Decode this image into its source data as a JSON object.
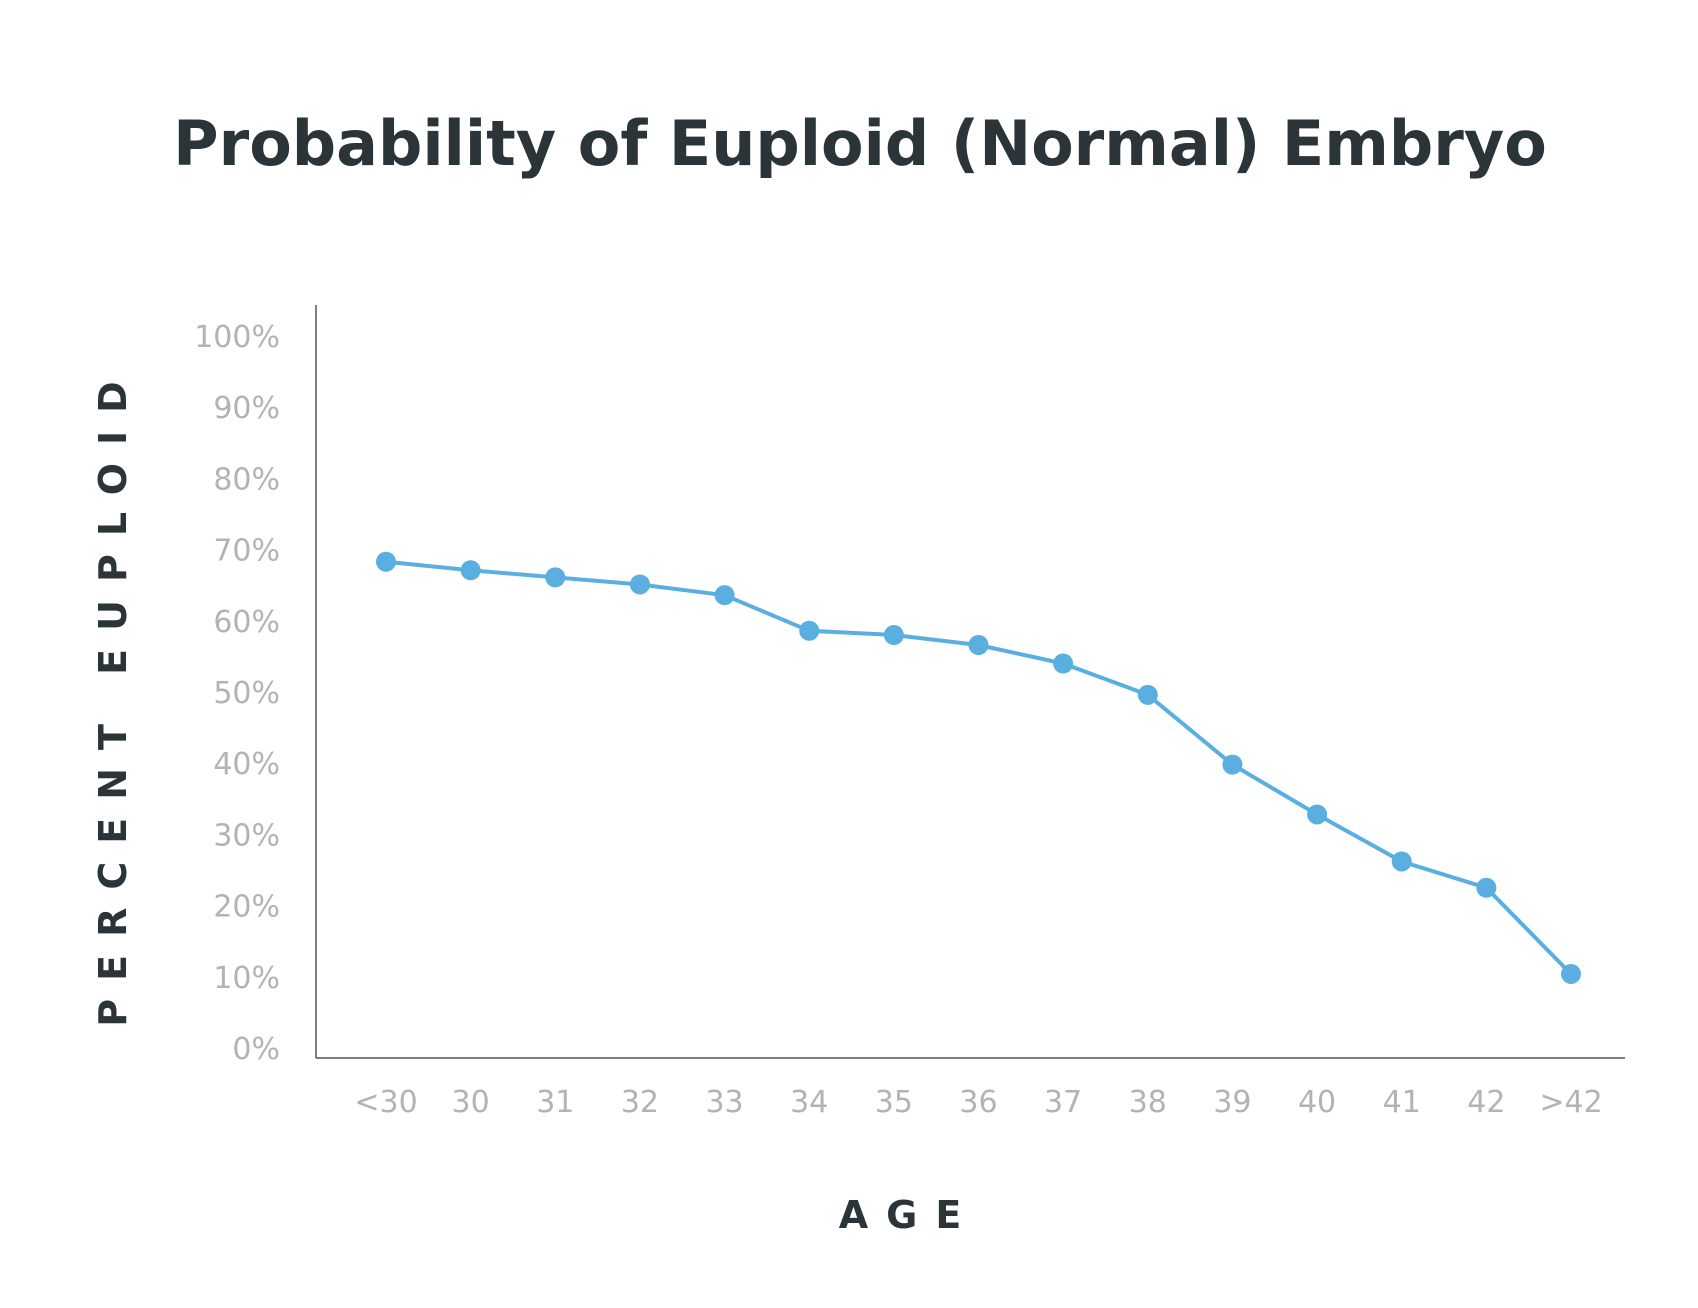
{
  "colors": {
    "series": "#5aafe0",
    "axis": "#555555",
    "title": "#2b3439",
    "tick": "#b3b3b3"
  },
  "chart_data": {
    "type": "line",
    "title": "Probability of Euploid (Normal) Embryo",
    "xlabel": "AGE",
    "ylabel": "PERCENT EUPLOID",
    "categories": [
      "<30",
      "30",
      "31",
      "32",
      "33",
      "34",
      "35",
      "36",
      "37",
      "38",
      "39",
      "40",
      "41",
      "42",
      ">42"
    ],
    "y_ticks": [
      "0%",
      "10%",
      "20%",
      "30%",
      "40%",
      "50%",
      "60%",
      "70%",
      "80%",
      "90%",
      "100%"
    ],
    "ylim": [
      0,
      100
    ],
    "grid": false,
    "legend": "none",
    "series": [
      {
        "values": [
          68.3,
          67.1,
          66.1,
          65.1,
          63.6,
          58.6,
          58.0,
          56.6,
          54.0,
          49.6,
          39.8,
          32.8,
          26.2,
          22.5,
          10.4
        ]
      }
    ]
  }
}
